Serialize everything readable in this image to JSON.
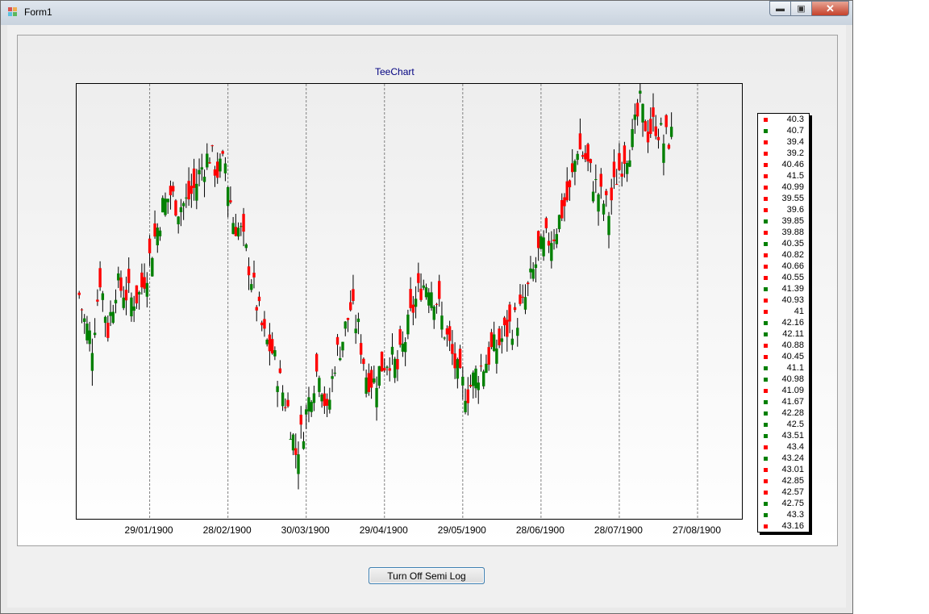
{
  "window": {
    "title": "Form1",
    "min_glyph": "▬",
    "max_glyph": "▣",
    "close_glyph": "✕"
  },
  "button": {
    "label": "Turn Off Semi Log"
  },
  "chart_data": {
    "type": "candlestick",
    "title": "TeeChart",
    "ylim": [
      34.8,
      44.7
    ],
    "xlim": [
      "1900-01-01",
      "1900-09-13"
    ],
    "grid": "vertical dashed",
    "legend_position": "right",
    "up_color": "#008000",
    "down_color": "#ff0000",
    "x_ticks": [
      "29/01/1900",
      "28/02/1900",
      "30/03/1900",
      "29/04/1900",
      "29/05/1900",
      "28/06/1900",
      "28/07/1900",
      "27/08/1900"
    ],
    "legend": [
      {
        "label": "40.3",
        "dir": "down"
      },
      {
        "label": "40.7",
        "dir": "up"
      },
      {
        "label": "39.4",
        "dir": "down"
      },
      {
        "label": "39.2",
        "dir": "down"
      },
      {
        "label": "40.46",
        "dir": "down"
      },
      {
        "label": "41.5",
        "dir": "down"
      },
      {
        "label": "40.99",
        "dir": "down"
      },
      {
        "label": "39.55",
        "dir": "down"
      },
      {
        "label": "39.6",
        "dir": "down"
      },
      {
        "label": "39.85",
        "dir": "up"
      },
      {
        "label": "39.88",
        "dir": "down"
      },
      {
        "label": "40.35",
        "dir": "up"
      },
      {
        "label": "40.82",
        "dir": "down"
      },
      {
        "label": "40.66",
        "dir": "down"
      },
      {
        "label": "40.55",
        "dir": "down"
      },
      {
        "label": "41.39",
        "dir": "up"
      },
      {
        "label": "40.93",
        "dir": "down"
      },
      {
        "label": "41",
        "dir": "down"
      },
      {
        "label": "42.16",
        "dir": "up"
      },
      {
        "label": "42.11",
        "dir": "up"
      },
      {
        "label": "40.88",
        "dir": "down"
      },
      {
        "label": "40.45",
        "dir": "down"
      },
      {
        "label": "41.1",
        "dir": "up"
      },
      {
        "label": "40.98",
        "dir": "up"
      },
      {
        "label": "41.09",
        "dir": "down"
      },
      {
        "label": "41.67",
        "dir": "up"
      },
      {
        "label": "42.28",
        "dir": "up"
      },
      {
        "label": "42.5",
        "dir": "up"
      },
      {
        "label": "43.51",
        "dir": "up"
      },
      {
        "label": "43.4",
        "dir": "down"
      },
      {
        "label": "43.24",
        "dir": "up"
      },
      {
        "label": "43.01",
        "dir": "down"
      },
      {
        "label": "42.85",
        "dir": "down"
      },
      {
        "label": "42.57",
        "dir": "down"
      },
      {
        "label": "42.75",
        "dir": "up"
      },
      {
        "label": "43.3",
        "dir": "up"
      },
      {
        "label": "43.16",
        "dir": "down"
      }
    ],
    "close_series": [
      [
        1,
        39.9
      ],
      [
        3,
        39.3
      ],
      [
        6,
        38.8
      ],
      [
        9,
        40.3
      ],
      [
        12,
        39.1
      ],
      [
        15,
        40.1
      ],
      [
        18,
        40.0
      ],
      [
        21,
        39.8
      ],
      [
        24,
        39.9
      ],
      [
        27,
        40.5
      ],
      [
        30,
        41.2
      ],
      [
        33,
        41.9
      ],
      [
        36,
        42.2
      ],
      [
        39,
        41.9
      ],
      [
        42,
        42.0
      ],
      [
        45,
        42.3
      ],
      [
        48,
        42.8
      ],
      [
        51,
        43.1
      ],
      [
        54,
        42.7
      ],
      [
        57,
        42.9
      ],
      [
        60,
        41.6
      ],
      [
        63,
        41.3
      ],
      [
        66,
        40.6
      ],
      [
        69,
        39.7
      ],
      [
        72,
        38.9
      ],
      [
        75,
        38.6
      ],
      [
        78,
        37.9
      ],
      [
        81,
        37.3
      ],
      [
        84,
        36.3
      ],
      [
        87,
        36.9
      ],
      [
        90,
        37.8
      ],
      [
        93,
        38.3
      ],
      [
        96,
        37.1
      ],
      [
        99,
        38.4
      ],
      [
        102,
        38.9
      ],
      [
        105,
        39.6
      ],
      [
        108,
        39.1
      ],
      [
        111,
        38.1
      ],
      [
        114,
        37.9
      ],
      [
        117,
        38.3
      ],
      [
        120,
        38.5
      ],
      [
        123,
        38.2
      ],
      [
        126,
        38.9
      ],
      [
        129,
        39.6
      ],
      [
        132,
        40.1
      ],
      [
        135,
        40.2
      ],
      [
        138,
        39.8
      ],
      [
        141,
        39.1
      ],
      [
        144,
        38.5
      ],
      [
        147,
        37.9
      ],
      [
        150,
        37.7
      ],
      [
        153,
        38.1
      ],
      [
        156,
        38.3
      ],
      [
        159,
        38.6
      ],
      [
        162,
        38.8
      ],
      [
        165,
        39.1
      ],
      [
        168,
        39.3
      ],
      [
        171,
        39.6
      ],
      [
        174,
        40.2
      ],
      [
        177,
        40.8
      ],
      [
        180,
        41.1
      ],
      [
        183,
        41.3
      ],
      [
        186,
        41.8
      ],
      [
        189,
        42.2
      ],
      [
        192,
        43.3
      ],
      [
        195,
        43.0
      ],
      [
        198,
        42.5
      ],
      [
        201,
        42.1
      ],
      [
        204,
        41.8
      ],
      [
        207,
        42.6
      ],
      [
        210,
        43.1
      ],
      [
        213,
        43.4
      ],
      [
        216,
        44.2
      ],
      [
        219,
        43.6
      ],
      [
        222,
        43.8
      ],
      [
        225,
        43.4
      ],
      [
        228,
        43.5
      ]
    ]
  }
}
